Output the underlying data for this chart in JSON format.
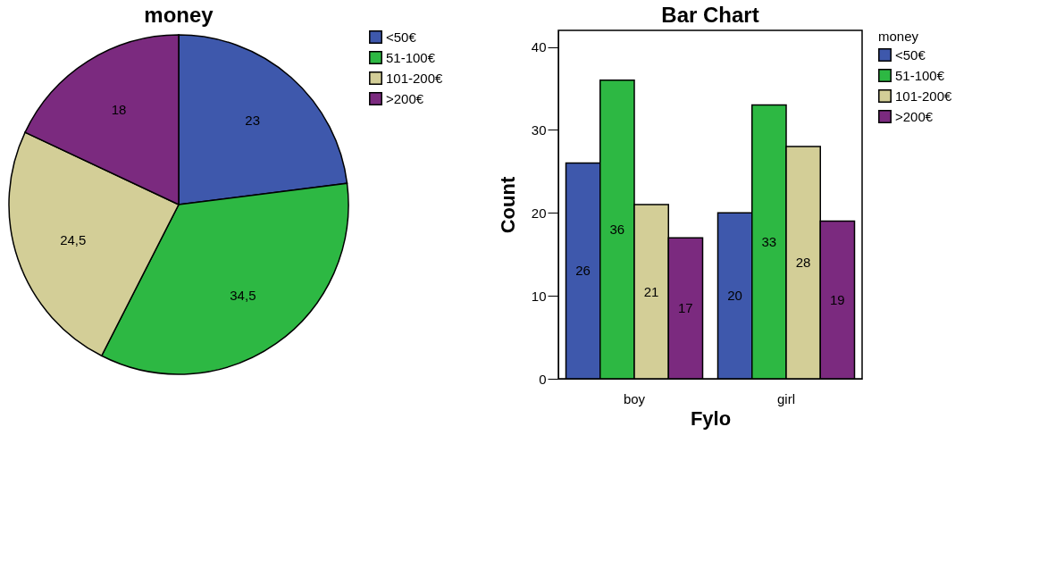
{
  "chart_data": [
    {
      "type": "pie",
      "title": "money",
      "categories": [
        "<50€",
        "51-100€",
        "101-200€",
        ">200€"
      ],
      "values": [
        23,
        34.5,
        24.5,
        18
      ],
      "value_labels": [
        "23",
        "34,5",
        "24,5",
        "18"
      ],
      "colors": [
        "#3e58ac",
        "#2db843",
        "#d3ce97",
        "#7b2a7f"
      ],
      "legend": "right"
    },
    {
      "type": "bar",
      "title": "Bar Chart",
      "xlabel": "Fylo",
      "ylabel": "Count",
      "legend_title": "money",
      "categories": [
        "boy",
        "girl"
      ],
      "series": [
        {
          "name": "<50€",
          "color": "#3e58ac",
          "values": [
            26,
            20
          ]
        },
        {
          "name": "51-100€",
          "color": "#2db843",
          "values": [
            36,
            33
          ]
        },
        {
          "name": "101-200€",
          "color": "#d3ce97",
          "values": [
            21,
            28
          ]
        },
        {
          "name": ">200€",
          "color": "#7b2a7f",
          "values": [
            17,
            19
          ]
        }
      ],
      "ylim": [
        0,
        42
      ],
      "yticks": [
        0,
        10,
        20,
        30,
        40
      ],
      "grid": false,
      "data_labels": true,
      "legend": "right"
    }
  ]
}
